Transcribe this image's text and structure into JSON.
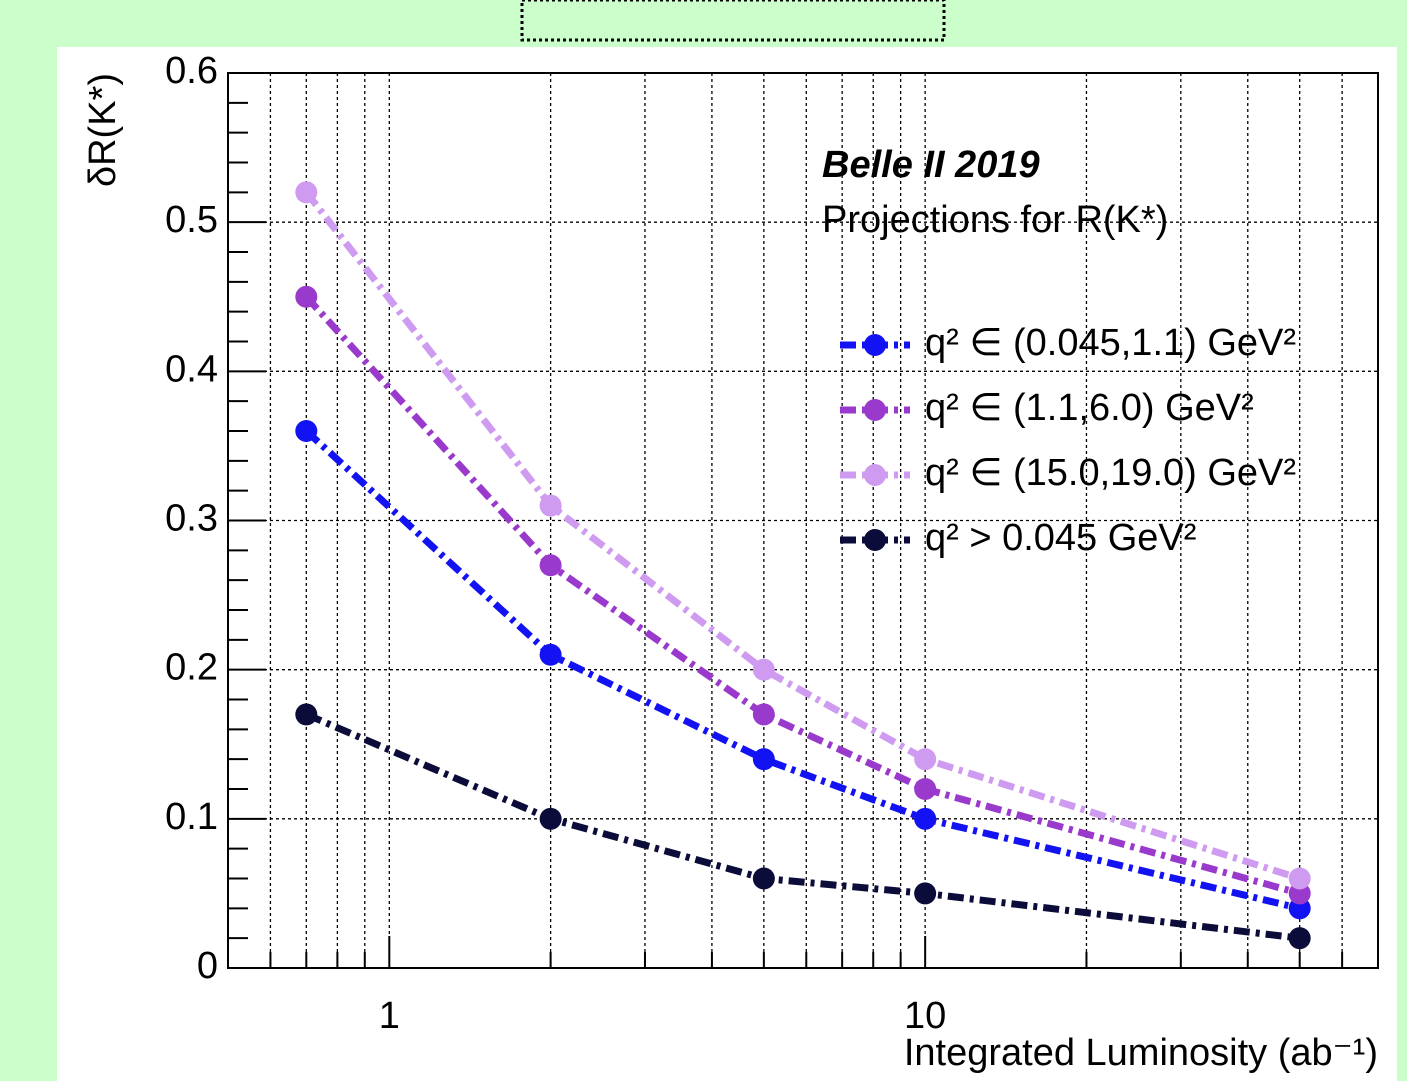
{
  "chart_data": {
    "type": "line",
    "annotation_title": "Belle II 2019",
    "annotation_subtitle": "Projections for R(K*)",
    "xlabel": "Integrated Luminosity (ab⁻¹)",
    "ylabel": "δR(K*)",
    "x": [
      0.7,
      2,
      5,
      10,
      50
    ],
    "xlog": true,
    "xlim": [
      0.5,
      70
    ],
    "xticks": [
      1,
      10
    ],
    "xminorticks": [
      0.6,
      0.7,
      0.8,
      0.9,
      2,
      3,
      4,
      5,
      6,
      7,
      8,
      9,
      20,
      30,
      40,
      50,
      60
    ],
    "ylim": [
      0,
      0.6
    ],
    "yticks": [
      0,
      0.1,
      0.2,
      0.3,
      0.4,
      0.5,
      0.6
    ],
    "yminorticks": [
      0.02,
      0.04,
      0.06,
      0.08,
      0.12,
      0.14,
      0.16,
      0.18,
      0.22,
      0.24,
      0.26,
      0.28,
      0.32,
      0.34,
      0.36,
      0.38,
      0.42,
      0.44,
      0.46,
      0.48,
      0.52,
      0.54,
      0.56,
      0.58
    ],
    "grid": true,
    "series": [
      {
        "name": "q² ∈ (0.045,1.1) GeV²",
        "color": "#1212f2",
        "values": [
          0.36,
          0.21,
          0.14,
          0.1,
          0.04
        ]
      },
      {
        "name": "q² ∈ (1.1,6.0) GeV²",
        "color": "#9a3acc",
        "values": [
          0.45,
          0.27,
          0.17,
          0.12,
          0.05
        ]
      },
      {
        "name": "q² ∈ (15.0,19.0) GeV²",
        "color": "#cf9bf0",
        "values": [
          0.52,
          0.31,
          0.2,
          0.14,
          0.06
        ]
      },
      {
        "name": "q² > 0.045 GeV²",
        "color": "#0c0c3a",
        "values": [
          0.17,
          0.1,
          0.06,
          0.05,
          0.02
        ]
      }
    ]
  }
}
